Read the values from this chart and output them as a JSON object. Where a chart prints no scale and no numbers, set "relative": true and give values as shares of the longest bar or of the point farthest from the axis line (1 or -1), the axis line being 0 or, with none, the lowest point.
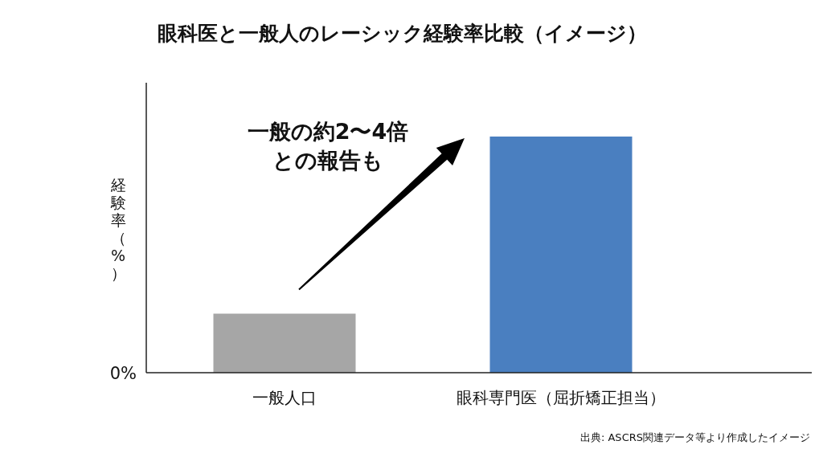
{
  "chart_data": {
    "type": "bar",
    "title": "眼科医と一般人のレーシック経験率比較（イメージ）",
    "ylabel": "経験率（%）",
    "categories": [
      "一般人口",
      "眼科専門医（屈折矯正担当）"
    ],
    "relative": true,
    "series": [
      {
        "values": [
          0.25,
          1
        ],
        "colors": [
          "#a6a6a6",
          "#4a7fc0"
        ]
      }
    ],
    "annotations": [
      "一般の約2〜4倍",
      "との報告も",
      "0%",
      "出典: ASCRS関連データ等より作成したイメージ"
    ]
  }
}
